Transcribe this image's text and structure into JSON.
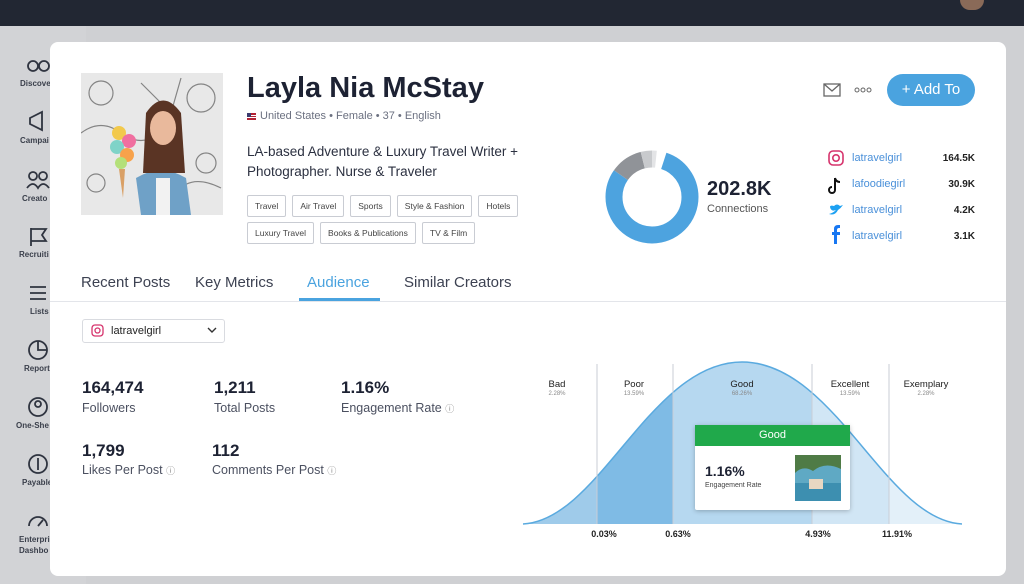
{
  "sidebar": {
    "items": [
      "Discove",
      "Campai",
      "Creato",
      "Recruiti",
      "Lists",
      "Report",
      "One-She",
      "Payable"
    ],
    "last_item_lines": [
      "Enterpri",
      "Dashbo"
    ]
  },
  "profile": {
    "name": "Layla Nia McStay",
    "details": "United States • Female • 37 • English",
    "bio_lines": [
      "LA-based Adventure & Luxury Travel Writer +",
      "Photographer. Nurse & Traveler"
    ],
    "tags": [
      "Travel",
      "Air Travel",
      "Sports",
      "Style & Fashion",
      "Hotels",
      "Luxury Travel",
      "Books & Publications",
      "TV & Film"
    ]
  },
  "actions": {
    "add_button": "+ Add To"
  },
  "connections": {
    "value": "202.8K",
    "label": "Connections"
  },
  "socials": [
    {
      "handle": "latravelgirl",
      "count": "164.5K"
    },
    {
      "handle": "lafoodiegirl",
      "count": "30.9K"
    },
    {
      "handle": "latravelgirl",
      "count": "4.2K"
    },
    {
      "handle": "latravelgirl",
      "count": "3.1K"
    }
  ],
  "tabs": [
    "Recent Posts",
    "Key Metrics",
    "Audience",
    "Similar Creators"
  ],
  "account_selector": "latravelgirl",
  "metrics": [
    {
      "value": "164,474",
      "label": "Followers"
    },
    {
      "value": "1,211",
      "label": "Total Posts"
    },
    {
      "value": "1.16%",
      "label": "Engagement Rate"
    },
    {
      "value": "1,799",
      "label": "Likes Per Post"
    },
    {
      "value": "112",
      "label": "Comments Per Post"
    }
  ],
  "benchmark": {
    "bands": [
      {
        "name": "Bad",
        "share": "2.28%"
      },
      {
        "name": "Poor",
        "share": "13.59%"
      },
      {
        "name": "Good",
        "share": "68.26%"
      },
      {
        "name": "Excellent",
        "share": "13.59%"
      },
      {
        "name": "Exemplary",
        "share": "2.28%"
      }
    ],
    "thresholds": [
      "0.03%",
      "0.63%",
      "4.93%",
      "11.91%"
    ],
    "tooltip": {
      "title": "Good",
      "value": "1.16%",
      "label": "Engagement Rate"
    }
  }
}
